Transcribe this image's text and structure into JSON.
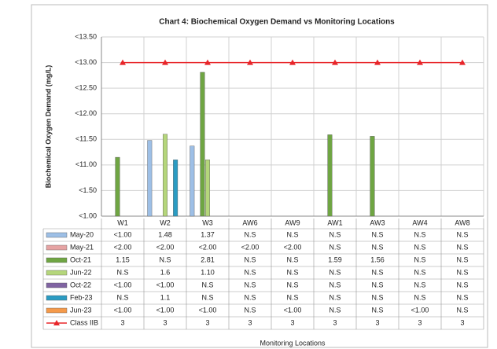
{
  "chart_data": {
    "type": "bar",
    "title": "Chart 4: Biochemical Oxygen Demand vs Monitoring Locations",
    "y_label": "Biochemical Oxygen Demand (mg/L)",
    "x_label": "Monitoring Locations",
    "categories": [
      "W1",
      "W2",
      "W3",
      "AW6",
      "AW9",
      "AW1",
      "AW3",
      "AW4",
      "AW8"
    ],
    "ylim": [
      0,
      3.5
    ],
    "yticks": [
      {
        "value": 0,
        "label": "<1.00"
      },
      {
        "value": 0.5,
        "label": "<1.50"
      },
      {
        "value": 1,
        "label": "<11.00"
      },
      {
        "value": 1.5,
        "label": "<11.50"
      },
      {
        "value": 2,
        "label": "<12.00"
      },
      {
        "value": 2.5,
        "label": "<12.50"
      },
      {
        "value": 3,
        "label": "<13.00"
      },
      {
        "value": 3.5,
        "label": "<13.50"
      }
    ],
    "grid": true,
    "series": [
      {
        "name": "May-20",
        "color": "#9dbfe6",
        "values": [
          null,
          1.48,
          1.37,
          null,
          null,
          null,
          null,
          null,
          null
        ],
        "value_labels": [
          "<1.00",
          "1.48",
          "1.37",
          "N.S",
          "N.S",
          "N.S",
          "N.S",
          "N.S",
          "N.S"
        ]
      },
      {
        "name": "May-21",
        "color": "#e6a3a3",
        "values": [
          null,
          null,
          null,
          null,
          null,
          null,
          null,
          null,
          null
        ],
        "value_labels": [
          "<2.00",
          "<2.00",
          "<2.00",
          "<2.00",
          "<2.00",
          "N.S",
          "N.S",
          "N.S",
          "N.S"
        ]
      },
      {
        "name": "Oct-21",
        "color": "#6fa543",
        "values": [
          1.15,
          null,
          2.81,
          null,
          null,
          1.59,
          1.56,
          null,
          null
        ],
        "value_labels": [
          "1.15",
          "N.S",
          "2.81",
          "N.S",
          "N.S",
          "1.59",
          "1.56",
          "N.S",
          "N.S"
        ]
      },
      {
        "name": "Jun-22",
        "color": "#b5d67b",
        "values": [
          null,
          1.6,
          1.1,
          null,
          null,
          null,
          null,
          null,
          null
        ],
        "value_labels": [
          "N.S",
          "1.6",
          "1.10",
          "N.S",
          "N.S",
          "N.S",
          "N.S",
          "N.S",
          "N.S"
        ]
      },
      {
        "name": "Oct-22",
        "color": "#8064a2",
        "values": [
          null,
          null,
          null,
          null,
          null,
          null,
          null,
          null,
          null
        ],
        "value_labels": [
          "<1.00",
          "<1.00",
          "N.S",
          "N.S",
          "N.S",
          "N.S",
          "N.S",
          "N.S",
          "N.S"
        ]
      },
      {
        "name": "Feb-23",
        "color": "#2b9bc2",
        "values": [
          null,
          1.1,
          null,
          null,
          null,
          null,
          null,
          null,
          null
        ],
        "value_labels": [
          "N.S",
          "1.1",
          "N.S",
          "N.S",
          "N.S",
          "N.S",
          "N.S",
          "N.S",
          "N.S"
        ]
      },
      {
        "name": "Jun-23",
        "color": "#f59a4a",
        "values": [
          null,
          null,
          null,
          null,
          null,
          null,
          null,
          null,
          null
        ],
        "value_labels": [
          "<1.00",
          "<1.00",
          "<1.00",
          "N.S",
          "<1.00",
          "N.S",
          "N.S",
          "<1.00",
          "N.S"
        ]
      },
      {
        "name": "Class IIB",
        "type": "line",
        "color": "#e8262a",
        "values": [
          3,
          3,
          3,
          3,
          3,
          3,
          3,
          3,
          3
        ]
      }
    ]
  }
}
